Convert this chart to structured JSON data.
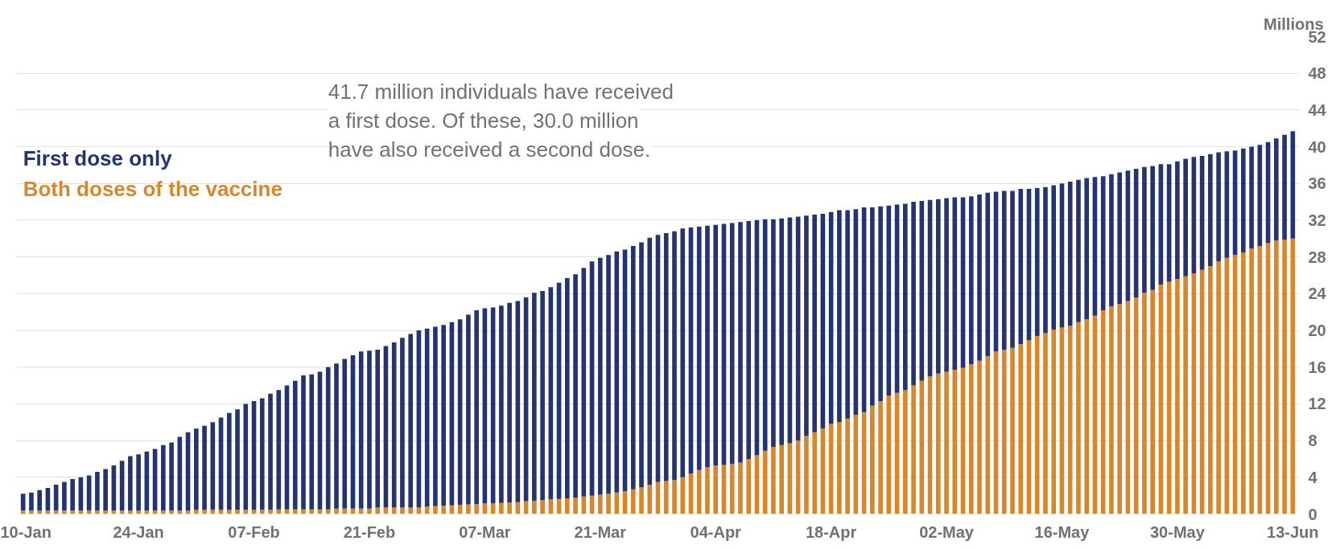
{
  "chart_data": {
    "type": "bar",
    "stacked": true,
    "ylabel": "Millions",
    "categories": [
      "10-Jan",
      null,
      null,
      null,
      null,
      null,
      null,
      null,
      null,
      null,
      null,
      null,
      null,
      null,
      "24-Jan",
      null,
      null,
      null,
      null,
      null,
      null,
      null,
      null,
      null,
      null,
      null,
      null,
      null,
      "07-Feb",
      null,
      null,
      null,
      null,
      null,
      null,
      null,
      null,
      null,
      null,
      null,
      null,
      null,
      "21-Feb",
      null,
      null,
      null,
      null,
      null,
      null,
      null,
      null,
      null,
      null,
      null,
      null,
      null,
      "07-Mar",
      null,
      null,
      null,
      null,
      null,
      null,
      null,
      null,
      null,
      null,
      null,
      null,
      null,
      "21-Mar",
      null,
      null,
      null,
      null,
      null,
      null,
      null,
      null,
      null,
      null,
      null,
      null,
      null,
      "04-Apr",
      null,
      null,
      null,
      null,
      null,
      null,
      null,
      null,
      null,
      null,
      null,
      null,
      null,
      "18-Apr",
      null,
      null,
      null,
      null,
      null,
      null,
      null,
      null,
      null,
      null,
      null,
      null,
      null,
      "02-May",
      null,
      null,
      null,
      null,
      null,
      null,
      null,
      null,
      null,
      null,
      null,
      null,
      null,
      "16-May",
      null,
      null,
      null,
      null,
      null,
      null,
      null,
      null,
      null,
      null,
      null,
      null,
      null,
      "30-May",
      null,
      null,
      null,
      null,
      null,
      null,
      null,
      null,
      null,
      null,
      null,
      null,
      null,
      "13-Jun"
    ],
    "series": [
      {
        "name": "Both doses of the vaccine",
        "color": "#d9862b",
        "values": [
          0.4,
          0.4,
          0.4,
          0.4,
          0.4,
          0.4,
          0.4,
          0.4,
          0.4,
          0.4,
          0.4,
          0.4,
          0.4,
          0.4,
          0.4,
          0.4,
          0.4,
          0.4,
          0.4,
          0.4,
          0.4,
          0.45,
          0.45,
          0.45,
          0.45,
          0.45,
          0.45,
          0.45,
          0.45,
          0.45,
          0.45,
          0.5,
          0.5,
          0.5,
          0.5,
          0.5,
          0.5,
          0.5,
          0.6,
          0.6,
          0.6,
          0.6,
          0.6,
          0.7,
          0.7,
          0.7,
          0.7,
          0.7,
          0.7,
          0.8,
          0.85,
          0.9,
          0.95,
          1.0,
          1.05,
          1.1,
          1.15,
          1.15,
          1.2,
          1.25,
          1.3,
          1.4,
          1.45,
          1.5,
          1.6,
          1.65,
          1.7,
          1.8,
          1.9,
          2.0,
          2.1,
          2.2,
          2.35,
          2.5,
          2.7,
          2.9,
          3.2,
          3.5,
          3.6,
          3.7,
          4.0,
          4.4,
          4.8,
          5.1,
          5.3,
          5.35,
          5.45,
          5.6,
          6.0,
          6.4,
          6.9,
          7.3,
          7.5,
          7.7,
          8.0,
          8.5,
          8.9,
          9.3,
          9.8,
          10.0,
          10.4,
          10.8,
          11.1,
          11.8,
          12.3,
          12.9,
          13.2,
          13.5,
          14.0,
          14.5,
          15.0,
          15.3,
          15.5,
          15.7,
          15.9,
          16.3,
          16.7,
          17.2,
          17.7,
          17.9,
          18.1,
          18.5,
          18.9,
          19.4,
          19.7,
          20.1,
          20.3,
          20.5,
          20.9,
          21.2,
          21.6,
          22.2,
          22.6,
          22.9,
          23.2,
          23.6,
          24.1,
          24.4,
          25.0,
          25.3,
          25.6,
          25.9,
          26.2,
          26.6,
          27.0,
          27.5,
          27.9,
          28.2,
          28.5,
          28.9,
          29.2,
          29.5,
          29.8,
          29.9,
          30.0
        ]
      },
      {
        "name": "First dose only",
        "color": "#263371",
        "values": [
          1.8,
          1.95,
          2.2,
          2.45,
          2.8,
          3.1,
          3.4,
          3.6,
          3.8,
          4.2,
          4.5,
          4.9,
          5.4,
          5.9,
          6.1,
          6.4,
          6.7,
          7.1,
          7.4,
          8.0,
          8.5,
          8.85,
          9.15,
          9.55,
          10.05,
          10.55,
          10.95,
          11.55,
          11.85,
          12.15,
          12.65,
          13.0,
          13.5,
          14.0,
          14.6,
          14.7,
          15.0,
          15.5,
          15.8,
          16.3,
          16.7,
          17.1,
          17.2,
          17.2,
          17.6,
          18.0,
          18.5,
          18.9,
          19.3,
          19.4,
          19.55,
          19.7,
          19.95,
          20.2,
          20.65,
          21.1,
          21.25,
          21.35,
          21.5,
          21.75,
          21.9,
          22.2,
          22.65,
          22.8,
          23.1,
          23.55,
          24.0,
          24.3,
          24.9,
          25.5,
          25.8,
          26.0,
          26.25,
          26.3,
          26.5,
          26.7,
          26.9,
          26.9,
          27.0,
          27.1,
          27.1,
          26.8,
          26.5,
          26.3,
          26.2,
          26.25,
          26.25,
          26.2,
          25.9,
          25.6,
          25.2,
          24.8,
          24.7,
          24.6,
          24.4,
          24.0,
          23.7,
          23.4,
          23.1,
          23.1,
          22.7,
          22.4,
          22.3,
          21.6,
          21.2,
          20.7,
          20.5,
          20.3,
          20.0,
          19.6,
          19.2,
          19.0,
          18.9,
          18.8,
          18.6,
          18.3,
          18.1,
          17.8,
          17.4,
          17.3,
          17.1,
          16.9,
          16.5,
          16.1,
          15.9,
          15.7,
          15.7,
          15.7,
          15.5,
          15.4,
          15.1,
          14.6,
          14.4,
          14.3,
          14.2,
          14.0,
          13.7,
          13.5,
          13.1,
          12.8,
          12.8,
          12.8,
          12.7,
          12.4,
          12.2,
          11.9,
          11.6,
          11.4,
          11.3,
          11.1,
          11.0,
          11.0,
          11.1,
          11.4,
          11.7
        ]
      }
    ],
    "ylim": [
      0,
      52
    ],
    "yticks": [
      0,
      4,
      8,
      12,
      16,
      20,
      24,
      28,
      32,
      36,
      40,
      44,
      48,
      52
    ],
    "grid": "y",
    "legend": "top left",
    "annotations": [
      "41.7 million individuals have received a first dose. Of these, 30.0 million have also received a second dose."
    ]
  }
}
